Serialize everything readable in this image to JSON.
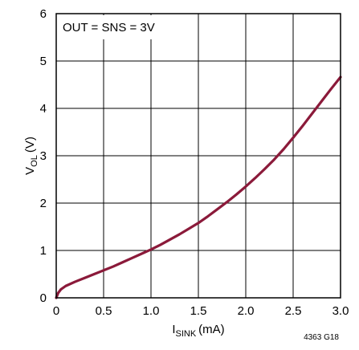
{
  "chart_data": {
    "type": "line",
    "xlabel": {
      "main": "I",
      "sub": "SINK",
      "unit": "(mA)"
    },
    "ylabel": {
      "main": "V",
      "sub": "OL",
      "unit": "(V)"
    },
    "xlim": [
      0,
      3.0
    ],
    "ylim": [
      0,
      6
    ],
    "x_ticks": [
      "0",
      "0.5",
      "1.0",
      "1.5",
      "2.0",
      "2.5",
      "3.0"
    ],
    "y_ticks": [
      "0",
      "1",
      "2",
      "3",
      "4",
      "5",
      "6"
    ],
    "grid": true,
    "annotation": "OUT = SNS = 3V",
    "figure_id": "4363 G18",
    "line_color": "#8b1a3a",
    "series": [
      {
        "x": [
          0,
          0.02,
          0.05,
          0.1,
          0.2,
          0.3,
          0.4,
          0.5,
          0.6,
          0.7,
          0.8,
          0.9,
          1.0,
          1.1,
          1.2,
          1.3,
          1.4,
          1.5,
          1.6,
          1.7,
          1.8,
          1.9,
          2.0,
          2.1,
          2.2,
          2.3,
          2.4,
          2.5,
          2.6,
          2.7,
          2.8,
          2.9,
          3.0
        ],
        "y": [
          0,
          0.1,
          0.18,
          0.25,
          0.34,
          0.42,
          0.5,
          0.58,
          0.66,
          0.75,
          0.84,
          0.93,
          1.02,
          1.12,
          1.23,
          1.34,
          1.46,
          1.58,
          1.72,
          1.87,
          2.02,
          2.18,
          2.35,
          2.53,
          2.72,
          2.92,
          3.14,
          3.38,
          3.63,
          3.89,
          4.15,
          4.41,
          4.66
        ]
      }
    ]
  }
}
